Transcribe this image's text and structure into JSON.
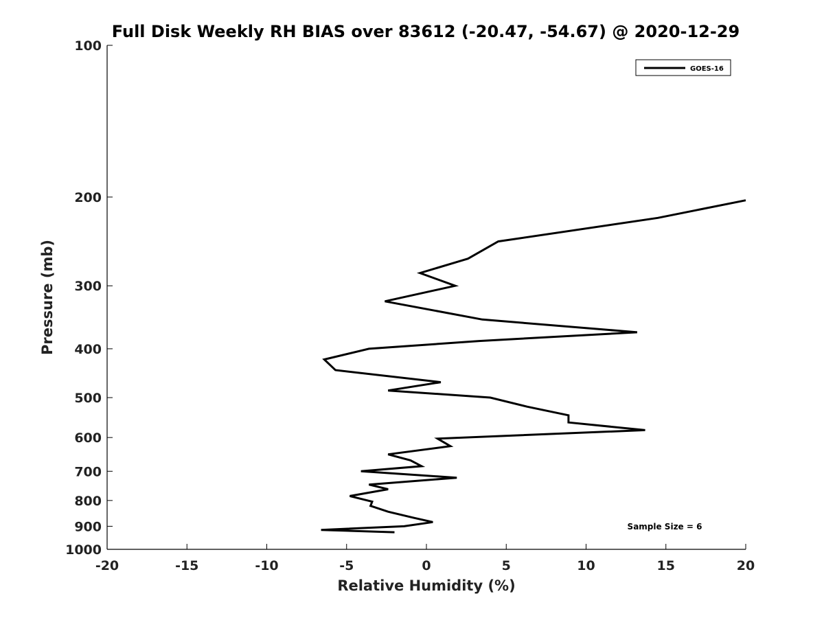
{
  "chart_data": {
    "type": "line",
    "title": "Full Disk Weekly RH BIAS over 83612 (-20.47, -54.67) @ 2020-12-29",
    "xlabel": "Relative Humidity (%)",
    "ylabel": "Pressure (mb)",
    "xlim": [
      -20,
      20
    ],
    "ylim": [
      1000,
      100
    ],
    "y_scale": "log",
    "x_ticks": [
      "-20",
      "-15",
      "-10",
      "-5",
      "0",
      "5",
      "10",
      "15",
      "20"
    ],
    "y_ticks": [
      "100",
      "200",
      "300",
      "400",
      "500",
      "600",
      "700",
      "800",
      "900",
      "1000"
    ],
    "grid": false,
    "legend_position": "top-right",
    "annotation": "Sample Size = 6",
    "series": [
      {
        "name": "GOES-16",
        "color": "#000000",
        "points": [
          {
            "x": 20.0,
            "y": 203
          },
          {
            "x": 14.5,
            "y": 220
          },
          {
            "x": 4.5,
            "y": 245
          },
          {
            "x": 2.6,
            "y": 265
          },
          {
            "x": -0.4,
            "y": 283
          },
          {
            "x": 1.8,
            "y": 300
          },
          {
            "x": -2.6,
            "y": 322
          },
          {
            "x": 3.5,
            "y": 350
          },
          {
            "x": 13.2,
            "y": 371
          },
          {
            "x": 3.3,
            "y": 386
          },
          {
            "x": -3.6,
            "y": 400
          },
          {
            "x": -6.4,
            "y": 420
          },
          {
            "x": -5.7,
            "y": 441
          },
          {
            "x": 0.9,
            "y": 466
          },
          {
            "x": -2.4,
            "y": 484
          },
          {
            "x": 4.0,
            "y": 500
          },
          {
            "x": 6.3,
            "y": 521
          },
          {
            "x": 8.9,
            "y": 542
          },
          {
            "x": 8.9,
            "y": 560
          },
          {
            "x": 13.7,
            "y": 580
          },
          {
            "x": 0.7,
            "y": 603
          },
          {
            "x": 1.5,
            "y": 624
          },
          {
            "x": -2.4,
            "y": 648
          },
          {
            "x": -1.0,
            "y": 666
          },
          {
            "x": -0.3,
            "y": 684
          },
          {
            "x": -4.1,
            "y": 700
          },
          {
            "x": 1.9,
            "y": 721
          },
          {
            "x": -3.6,
            "y": 744
          },
          {
            "x": -2.4,
            "y": 760
          },
          {
            "x": -4.8,
            "y": 784
          },
          {
            "x": -3.4,
            "y": 804
          },
          {
            "x": -3.5,
            "y": 820
          },
          {
            "x": -2.4,
            "y": 842
          },
          {
            "x": -0.8,
            "y": 866
          },
          {
            "x": 0.4,
            "y": 883
          },
          {
            "x": -1.4,
            "y": 900
          },
          {
            "x": -6.6,
            "y": 915
          },
          {
            "x": -2.0,
            "y": 925
          }
        ]
      }
    ]
  }
}
